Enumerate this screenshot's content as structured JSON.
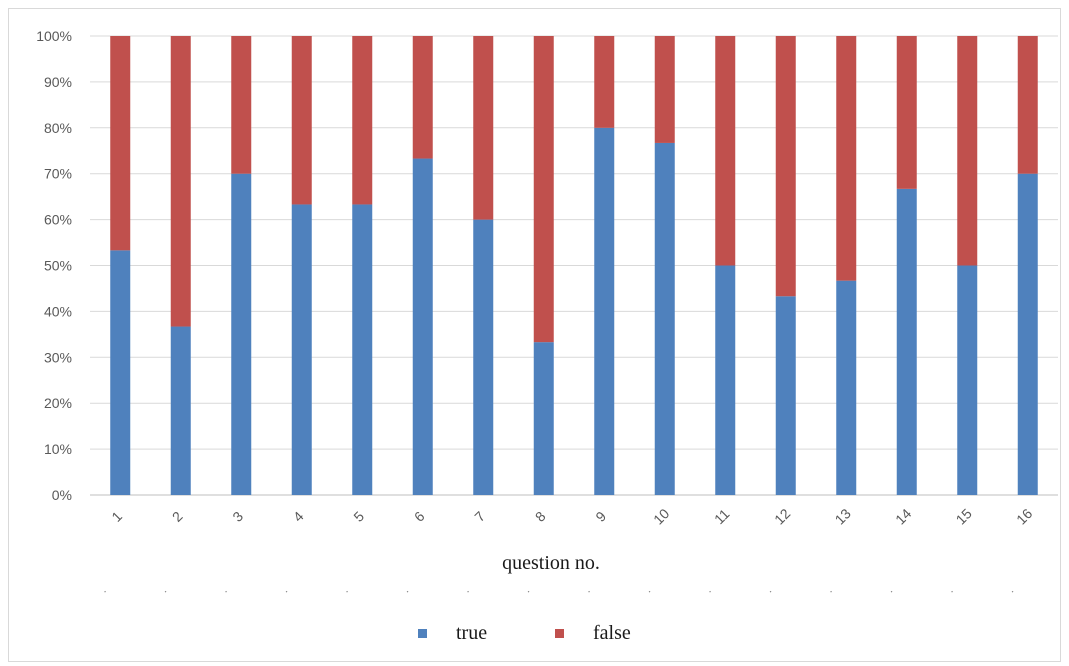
{
  "chart_data": {
    "type": "bar",
    "stacked": "percent",
    "categories": [
      "1",
      "2",
      "3",
      "4",
      "5",
      "6",
      "7",
      "8",
      "9",
      "10",
      "11",
      "12",
      "13",
      "14",
      "15",
      "16"
    ],
    "series": [
      {
        "name": "true",
        "color": "#4f81bd",
        "values": [
          53.3,
          36.7,
          70.0,
          63.3,
          63.3,
          73.3,
          60.0,
          33.3,
          80.0,
          76.7,
          50.0,
          43.3,
          46.7,
          66.7,
          50.0,
          70.0
        ]
      },
      {
        "name": "false",
        "color": "#c0504d",
        "values": [
          46.7,
          63.3,
          30.0,
          36.7,
          36.7,
          26.7,
          40.0,
          66.7,
          20.0,
          23.3,
          50.0,
          56.7,
          53.3,
          33.3,
          50.0,
          30.0
        ]
      }
    ],
    "yticks": [
      "0%",
      "10%",
      "20%",
      "30%",
      "40%",
      "50%",
      "60%",
      "70%",
      "80%",
      "90%",
      "100%"
    ],
    "ylim": [
      0,
      100
    ],
    "xlabel": "question no.",
    "ylabel": "",
    "title": "",
    "grid": true,
    "legend": "bottom-center"
  }
}
